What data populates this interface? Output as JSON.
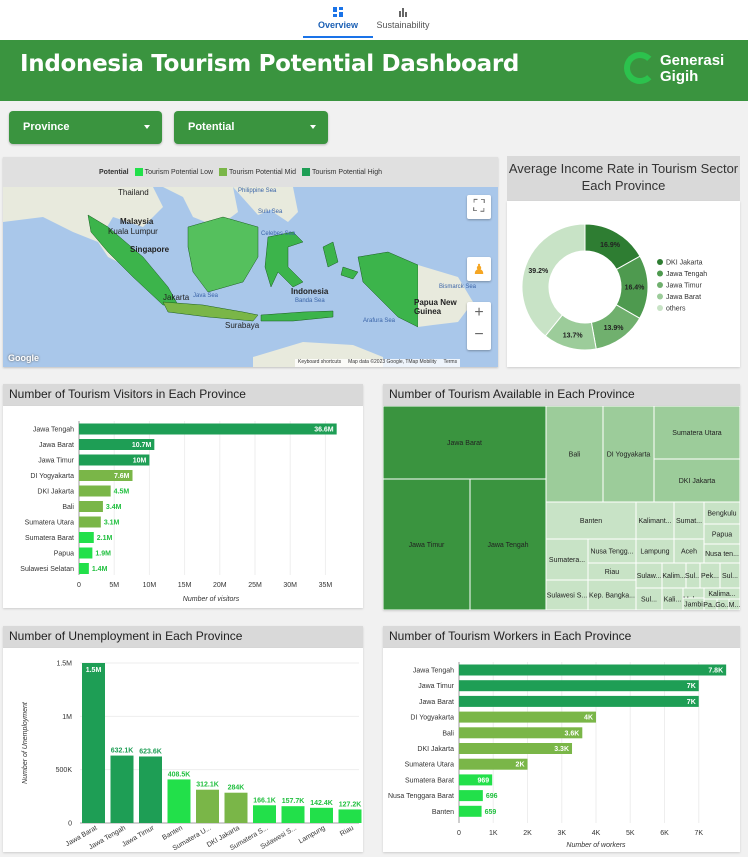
{
  "nav": {
    "tabs": [
      {
        "label": "Overview",
        "active": true
      },
      {
        "label": "Sustainability",
        "active": false
      }
    ]
  },
  "header": {
    "title": "Indonesia Tourism Potential Dashboard",
    "logo_line1": "Generasi",
    "logo_line2": "Gigih"
  },
  "filters": {
    "province_label": "Province",
    "potential_label": "Potential"
  },
  "map": {
    "legend_title": "Potential",
    "legend_items": [
      {
        "label": "Tourism Potential Low",
        "color": "#22e04a"
      },
      {
        "label": "Tourism Potential Mid",
        "color": "#7ab648"
      },
      {
        "label": "Tourism Potential High",
        "color": "#1e9e55"
      }
    ],
    "labels": [
      "Thailand",
      "Malaysia",
      "Kuala Lumpur",
      "Singapore",
      "Indonesia",
      "Papua New Guinea",
      "Jakarta",
      "Surabaya"
    ],
    "sea_labels": [
      "Philippine Sea",
      "Celebes Sea",
      "Banda Sea",
      "Java Sea",
      "Arafura Sea",
      "Bismarck Sea",
      "Sulu Sea"
    ],
    "attribution": [
      "Keyboard shortcuts",
      "Map data ©2023 Google, TMap Mobility",
      "Terms"
    ],
    "google_label": "Google"
  },
  "income": {
    "title": "Average Income Rate in Tourism Sector Each Province"
  },
  "visitors_panel": {
    "title": "Number of Tourism Visitors in Each Province"
  },
  "available_panel": {
    "title": "Number of Tourism Available in Each Province"
  },
  "unemployment_panel": {
    "title": "Number of Unemployment in Each Province"
  },
  "workers_panel": {
    "title": "Number of Tourism Workers in Each Province"
  },
  "chart_data": [
    {
      "id": "income",
      "type": "pie",
      "title": "Average Income Rate in Tourism Sector Each Province",
      "slices": [
        {
          "label": "DKI Jakarta",
          "value": 16.9,
          "display": "16.9%",
          "color": "#2e7d32"
        },
        {
          "label": "Jawa Tengah",
          "value": 16.4,
          "display": "16.4%",
          "color": "#4e9a4f"
        },
        {
          "label": "Jawa Timur",
          "value": 13.9,
          "display": "13.9%",
          "color": "#70b06e"
        },
        {
          "label": "Jawa Barat",
          "value": 13.7,
          "display": "13.7%",
          "color": "#9ccc9a"
        },
        {
          "label": "others",
          "value": 39.2,
          "display": "39.2%",
          "color": "#c8e3c6"
        }
      ]
    },
    {
      "id": "visitors",
      "type": "bar",
      "orientation": "horizontal",
      "categories": [
        "Jawa Tengah",
        "Jawa Barat",
        "Jawa Timur",
        "DI Yogyakarta",
        "DKI Jakarta",
        "Bali",
        "Sumatera Utara",
        "Sumatera Barat",
        "Papua",
        "Sulawesi Selatan"
      ],
      "values": [
        36.6,
        10.7,
        10,
        7.6,
        4.5,
        3.4,
        3.1,
        2.1,
        1.9,
        1.4
      ],
      "labels": [
        "36.6M",
        "10.7M",
        "10M",
        "7.6M",
        "4.5M",
        "3.4M",
        "3.1M",
        "2.1M",
        "1.9M",
        "1.4M"
      ],
      "colors": [
        "#1e9e55",
        "#1e9e55",
        "#1e9e55",
        "#7ab648",
        "#7ab648",
        "#7ab648",
        "#7ab648",
        "#22e04a",
        "#22e04a",
        "#22e04a"
      ],
      "xticks": [
        "0",
        "5M",
        "10M",
        "15M",
        "20M",
        "25M",
        "30M",
        "35M"
      ],
      "xlim": [
        0,
        37.5
      ],
      "xlabel": "Number of visitors"
    },
    {
      "id": "available",
      "type": "treemap",
      "cells": [
        {
          "label": "Jawa Barat",
          "color": "#3a943f"
        },
        {
          "label": "Jawa Timur",
          "color": "#3a943f"
        },
        {
          "label": "Jawa Tengah",
          "color": "#3a943f"
        },
        {
          "label": "Bali",
          "color": "#9ccc9a"
        },
        {
          "label": "DI Yogyakarta",
          "color": "#9ccc9a"
        },
        {
          "label": "Sumatera Utara",
          "color": "#9ccc9a"
        },
        {
          "label": "DKI Jakarta",
          "color": "#9ccc9a"
        },
        {
          "label": "Banten",
          "color": "#c8e3c6"
        },
        {
          "label": "Kalimant...",
          "color": "#c8e3c6"
        },
        {
          "label": "Sumat...",
          "color": "#c8e3c6"
        },
        {
          "label": "Bengkulu",
          "color": "#c8e3c6"
        },
        {
          "label": "Papua",
          "color": "#c8e3c6"
        },
        {
          "label": "Sumatera...",
          "color": "#c8e3c6"
        },
        {
          "label": "Nusa Tengg...",
          "color": "#c8e3c6"
        },
        {
          "label": "Lampung",
          "color": "#c8e3c6"
        },
        {
          "label": "Aceh",
          "color": "#c8e3c6"
        },
        {
          "label": "Nusa ten...",
          "color": "#c8e3c6"
        },
        {
          "label": "Riau",
          "color": "#c8e3c6"
        },
        {
          "label": "Sulaw...",
          "color": "#c8e3c6"
        },
        {
          "label": "Kalim...",
          "color": "#c8e3c6"
        },
        {
          "label": "Sul...",
          "color": "#c8e3c6"
        },
        {
          "label": "Pek...",
          "color": "#c8e3c6"
        },
        {
          "label": "Sul...",
          "color": "#c8e3c6"
        },
        {
          "label": "Sulawesi S...",
          "color": "#c8e3c6"
        },
        {
          "label": "Kep. Bangka...",
          "color": "#c8e3c6"
        },
        {
          "label": "Kali...",
          "color": "#c8e3c6"
        },
        {
          "label": "Sul...",
          "color": "#c8e3c6"
        },
        {
          "label": "Malu...",
          "color": "#c8e3c6"
        },
        {
          "label": "Kalima...",
          "color": "#c8e3c6"
        },
        {
          "label": "Jambi",
          "color": "#c8e3c6"
        },
        {
          "label": "Pa...",
          "color": "#c8e3c6"
        },
        {
          "label": "Go...",
          "color": "#c8e3c6"
        },
        {
          "label": "M...",
          "color": "#c8e3c6"
        }
      ]
    },
    {
      "id": "unemployment",
      "type": "bar",
      "orientation": "vertical",
      "categories": [
        "Jawa Barat",
        "Jawa Tengah",
        "Jawa Timur",
        "Banten",
        "Sumatera U...",
        "DKI Jakarta",
        "Sumatera S...",
        "Sulawesi S...",
        "Lampung",
        "Riau"
      ],
      "values": [
        1500,
        632.1,
        623.6,
        408.5,
        312.1,
        284,
        166.1,
        157.7,
        142.4,
        127.2
      ],
      "labels": [
        "1.5M",
        "632.1K",
        "623.6K",
        "408.5K",
        "312.1K",
        "284K",
        "166.1K",
        "157.7K",
        "142.4K",
        "127.2K"
      ],
      "colors": [
        "#1e9e55",
        "#1e9e55",
        "#1e9e55",
        "#22e04a",
        "#7ab648",
        "#7ab648",
        "#22e04a",
        "#22e04a",
        "#22e04a",
        "#22e04a"
      ],
      "yticks": [
        "0",
        "500K",
        "1M",
        "1.5M"
      ],
      "ylim": [
        0,
        1500
      ],
      "ylabel": "Number of Unemployment"
    },
    {
      "id": "workers",
      "type": "bar",
      "orientation": "horizontal",
      "categories": [
        "Jawa Tengah",
        "Jawa Timur",
        "Jawa Barat",
        "DI Yogyakarta",
        "Bali",
        "DKI Jakarta",
        "Sumatera Utara",
        "Sumatera Barat",
        "Nusa Tenggara Barat",
        "Banten"
      ],
      "values": [
        7.8,
        7,
        7,
        4,
        3.6,
        3.3,
        2,
        0.969,
        0.696,
        0.659
      ],
      "labels": [
        "7.8K",
        "7K",
        "7K",
        "4K",
        "3.6K",
        "3.3K",
        "2K",
        "969",
        "696",
        "659"
      ],
      "colors": [
        "#1e9e55",
        "#1e9e55",
        "#1e9e55",
        "#7ab648",
        "#7ab648",
        "#7ab648",
        "#7ab648",
        "#22e04a",
        "#22e04a",
        "#22e04a"
      ],
      "xticks": [
        "0",
        "1K",
        "2K",
        "3K",
        "4K",
        "5K",
        "6K",
        "7K"
      ],
      "xlim": [
        0,
        8
      ],
      "xlabel": "Number of workers"
    }
  ]
}
